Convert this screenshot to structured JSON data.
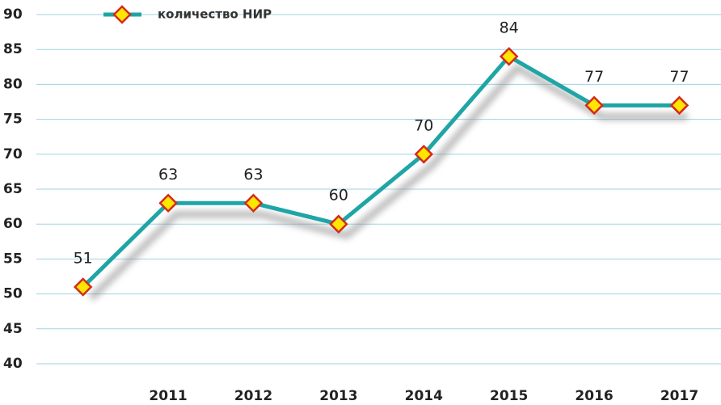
{
  "chart_data": {
    "type": "line",
    "categories": [
      null,
      "2011",
      "2012",
      "2013",
      "2014",
      "2015",
      "2016",
      "2017"
    ],
    "series": [
      {
        "name": "количество НИР",
        "color": "#1fa5a5",
        "marker_fill": "#ffe600",
        "marker_edge": "#d42a1e",
        "values": [
          51,
          63,
          63,
          60,
          70,
          84,
          77,
          77
        ]
      }
    ],
    "ylim": [
      40,
      90
    ],
    "yticks": [
      40,
      45,
      50,
      55,
      60,
      65,
      70,
      75,
      80,
      85,
      90
    ],
    "grid": true,
    "grid_color": "#9fd3e3",
    "legend": "top-left"
  }
}
